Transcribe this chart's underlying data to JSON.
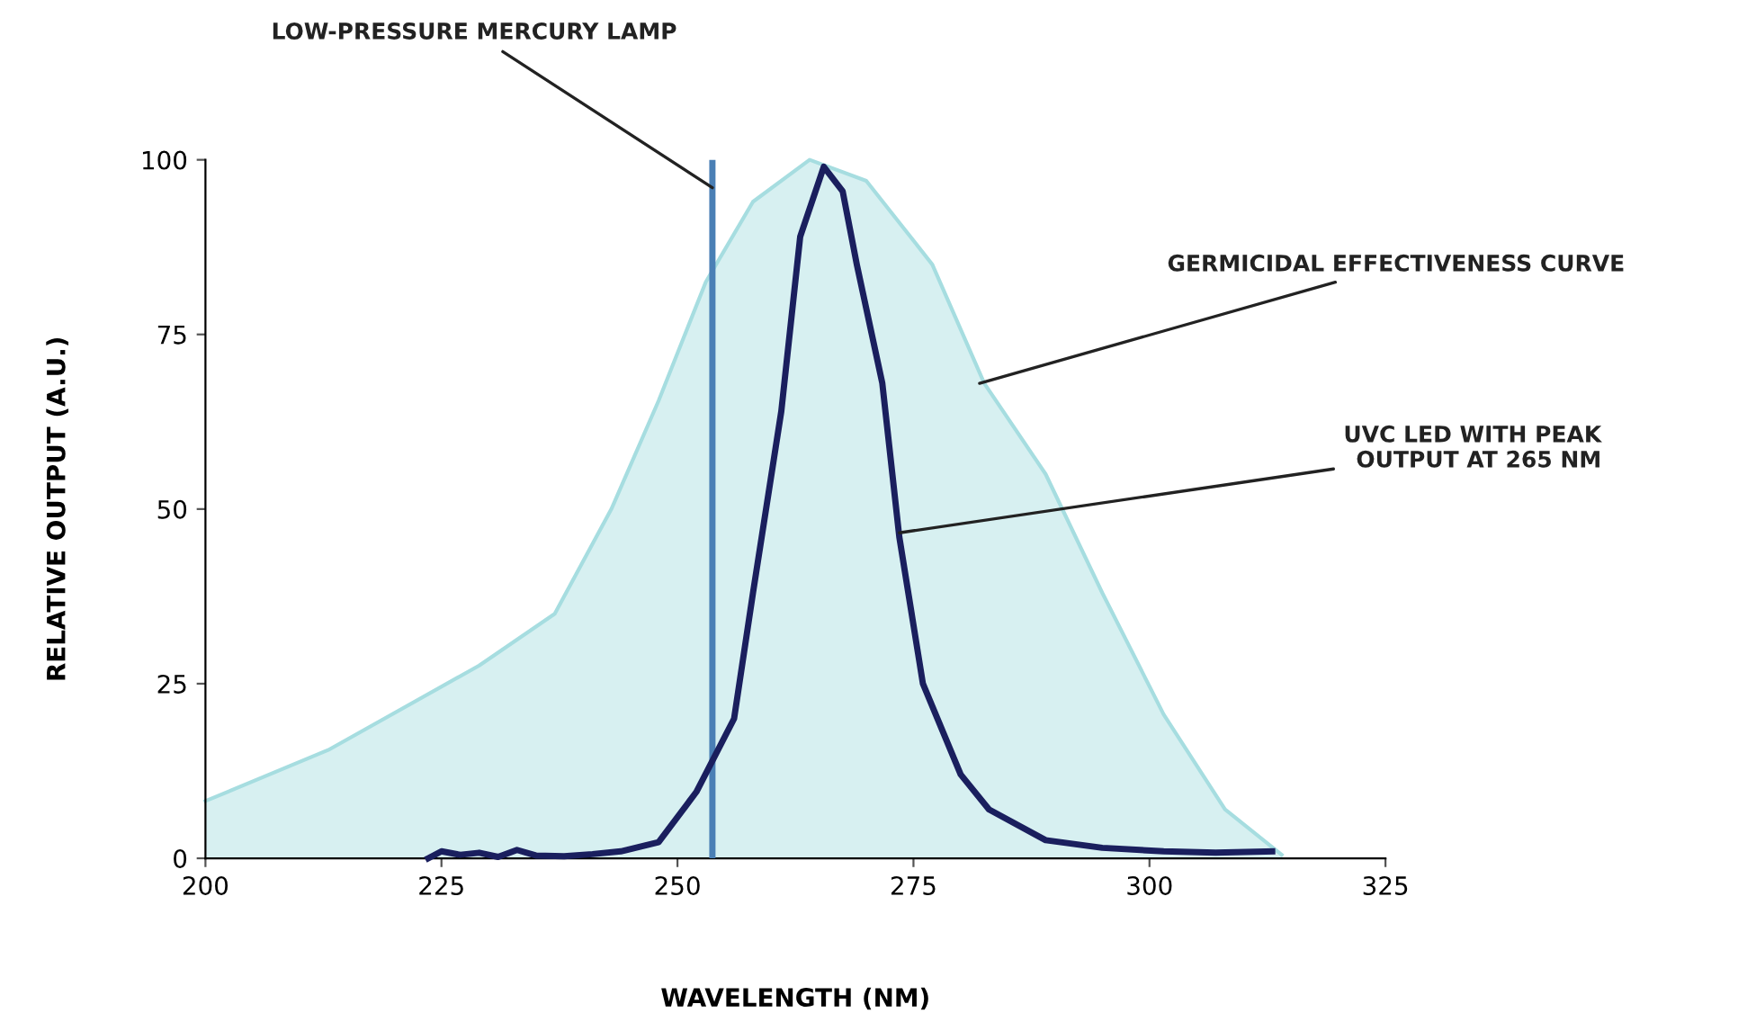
{
  "chart_data": {
    "type": "line",
    "xlabel": "WAVELENGTH (NM)",
    "ylabel": "RELATIVE OUTPUT (A.U.)",
    "xlim": [
      200,
      325
    ],
    "xticks": [
      200,
      225,
      250,
      275,
      300,
      325
    ],
    "ylim": [
      0,
      100
    ],
    "yticks": [
      0,
      25,
      50,
      75,
      100
    ],
    "grid": false,
    "series": [
      {
        "type": "area",
        "color": "#a6dde0",
        "x": [
          200,
          213,
          229,
          237,
          243,
          248,
          253,
          258,
          264,
          270,
          277,
          282.5,
          289,
          295,
          301.5,
          308,
          314
        ],
        "values": [
          8.2,
          15.5,
          27.6,
          35,
          50,
          65.5,
          82.5,
          94,
          100,
          97,
          85,
          68,
          55,
          38,
          20.6,
          7,
          0.5
        ]
      },
      {
        "color": "#1a1f5e",
        "x": [
          223.6,
          225,
          227,
          229,
          231,
          233,
          235,
          238,
          241,
          244,
          248,
          252,
          256,
          258,
          261,
          263,
          265.5,
          267.5,
          269,
          271.7,
          273.5,
          276,
          280,
          283,
          289,
          295,
          301.5,
          307,
          313
        ],
        "values": [
          0,
          1,
          0.5,
          0.8,
          0.2,
          1.2,
          0.4,
          0.3,
          0.6,
          1,
          2.3,
          9.5,
          20,
          38,
          64,
          89,
          99,
          95.5,
          85,
          68,
          46,
          25,
          12,
          7,
          2.6,
          1.5,
          1,
          0.8,
          1
        ]
      }
    ],
    "ref_lines": [
      {
        "axis": "x",
        "value": 253.7,
        "color": "#4a7fb5"
      }
    ],
    "annotations": [
      {
        "text": "LOW-PRESSURE MERCURY LAMP",
        "x": 253.7,
        "y": 96
      },
      {
        "text": "GERMICIDAL EFFECTIVENESS CURVE",
        "x": 282,
        "y": 68
      },
      {
        "text": "UVC LED WITH PEAK\nOUTPUT AT 265 NM",
        "x": 273.5,
        "y": 46.6
      }
    ]
  }
}
